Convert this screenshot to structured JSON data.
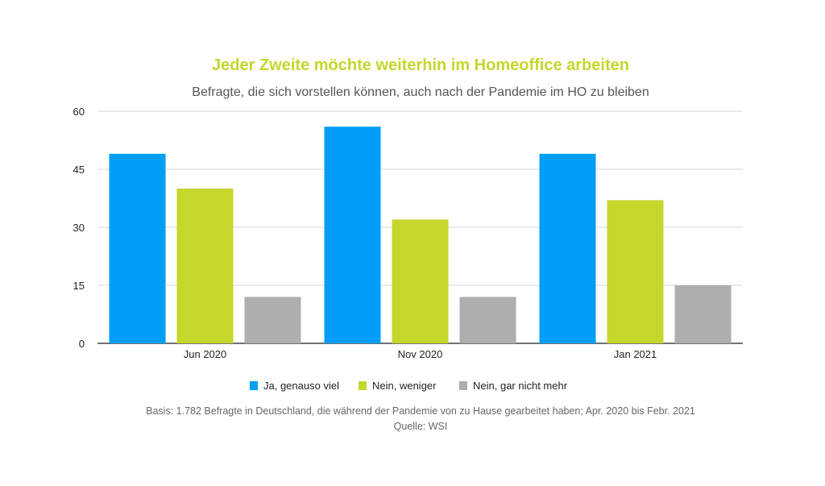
{
  "chart_data": {
    "type": "bar",
    "title": "Jeder Zweite möchte weiterhin im Homeoffice arbeiten",
    "subtitle": "Befragte, die sich vorstellen können, auch nach der Pandemie im HO zu bleiben",
    "categories": [
      "Jun 2020",
      "Nov 2020",
      "Jan 2021"
    ],
    "series": [
      {
        "name": "Ja, genauso viel",
        "color": "#009ef7",
        "values": [
          49,
          56,
          49
        ]
      },
      {
        "name": "Nein, weniger",
        "color": "#c5d62c",
        "values": [
          40,
          32,
          37
        ]
      },
      {
        "name": "Nein, gar nicht mehr",
        "color": "#adaeb0",
        "values": [
          12,
          12,
          15
        ]
      }
    ],
    "yticks": [
      "0",
      "15",
      "30",
      "45",
      "60"
    ],
    "ylim": [
      0,
      60
    ],
    "grid": true,
    "legend": "bottom",
    "xlabel": "",
    "ylabel": "",
    "footnote": "Basis: 1.782 Befragte in Deutschland, die während der Pandemie von zu Hause gearbeitet haben; Apr. 2020 bis Febr. 2021",
    "source": "Quelle: WSI"
  }
}
